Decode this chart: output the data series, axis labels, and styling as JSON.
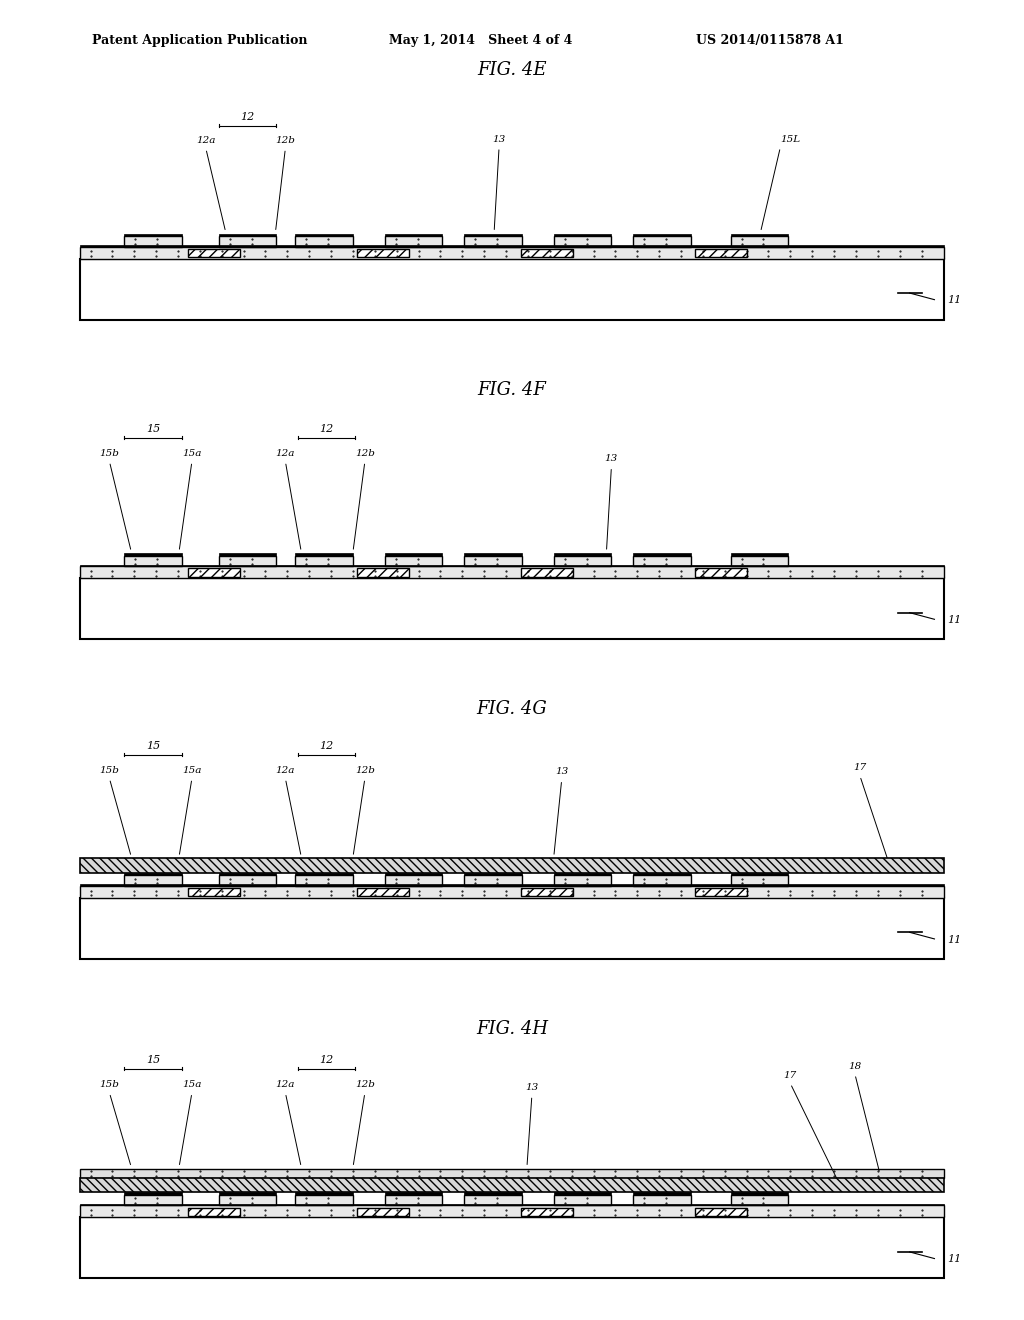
{
  "header_left": "Patent Application Publication",
  "header_mid": "May 1, 2014   Sheet 4 of 4",
  "header_right": "US 2014/0115878 A1",
  "figures": [
    "FIG. 4E",
    "FIG. 4F",
    "FIG. 4G",
    "FIG. 4H"
  ],
  "bg_color": "#ffffff",
  "line_color": "#000000"
}
